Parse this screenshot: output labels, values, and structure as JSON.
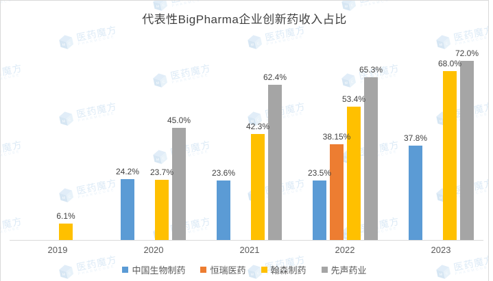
{
  "title": "代表性BigPharma企业创新药收入占比",
  "watermark": {
    "text_cn": "医药魔方",
    "text_en": "PHARMCUBE"
  },
  "colors": {
    "blue": "#5B9BD5",
    "orange": "#ED7D31",
    "yellow": "#FFC000",
    "gray": "#A5A5A5",
    "axis": "#D9D9D9",
    "label_text": "#404040",
    "axis_text": "#595959",
    "watermark_blue": "#D7E7F5"
  },
  "chart_data": {
    "type": "bar",
    "title": "代表性BigPharma企业创新药收入占比",
    "categories": [
      "2019",
      "2020",
      "2021",
      "2022",
      "2023"
    ],
    "series": [
      {
        "name": "中国生物制药",
        "color": "#5B9BD5",
        "values": [
          null,
          24.2,
          23.6,
          23.5,
          37.8
        ],
        "labels": [
          "",
          "24.2%",
          "23.6%",
          "23.5%",
          "37.8%"
        ]
      },
      {
        "name": "恒瑞医药",
        "color": "#ED7D31",
        "values": [
          null,
          null,
          null,
          38.15,
          null
        ],
        "labels": [
          "",
          "",
          "",
          "38.15%",
          ""
        ]
      },
      {
        "name": "翰森制药",
        "color": "#FFC000",
        "values": [
          6.1,
          23.7,
          42.3,
          53.4,
          68.0
        ],
        "labels": [
          "6.1%",
          "23.7%",
          "42.3%",
          "53.4%",
          "68.0%"
        ]
      },
      {
        "name": "先声药业",
        "color": "#A5A5A5",
        "values": [
          null,
          45.0,
          62.4,
          65.3,
          72.0
        ],
        "labels": [
          "",
          "45.0%",
          "62.4%",
          "65.3%",
          "72.0%"
        ]
      }
    ],
    "xlabel": "",
    "ylabel": "",
    "ylim": [
      0,
      75
    ],
    "grid": false,
    "y_axis_ticks_visible": false,
    "legend_position": "bottom",
    "value_label_suffix": "%"
  }
}
